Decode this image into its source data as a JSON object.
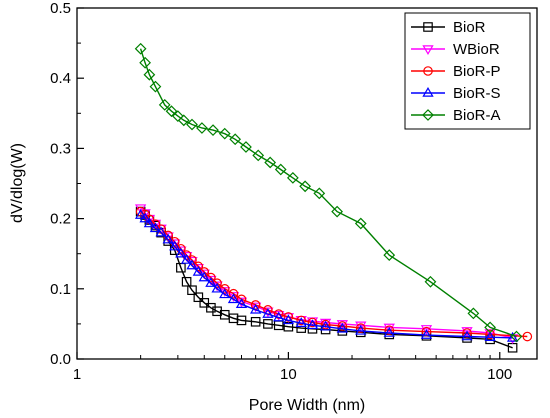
{
  "chart_data": {
    "type": "line",
    "xlabel": "Pore Width (nm)",
    "ylabel": "dV/dlog(W)",
    "xscale": "log",
    "xlim": [
      1,
      150
    ],
    "ylim": [
      0,
      0.5
    ],
    "xticks": [
      {
        "value": 1,
        "label": "1"
      },
      {
        "value": 10,
        "label": "10"
      },
      {
        "value": 100,
        "label": "100"
      }
    ],
    "yticks": [
      {
        "value": 0,
        "label": "0.0"
      },
      {
        "value": 0.1,
        "label": "0.1"
      },
      {
        "value": 0.2,
        "label": "0.2"
      },
      {
        "value": 0.3,
        "label": "0.3"
      },
      {
        "value": 0.4,
        "label": "0.4"
      },
      {
        "value": 0.5,
        "label": "0.5"
      }
    ],
    "grid": false,
    "legend_position": "top-right",
    "series": [
      {
        "name": "BioR",
        "color": "#000000",
        "marker": "square",
        "points": [
          [
            2.0,
            0.21
          ],
          [
            2.1,
            0.205
          ],
          [
            2.2,
            0.198
          ],
          [
            2.35,
            0.19
          ],
          [
            2.5,
            0.18
          ],
          [
            2.7,
            0.168
          ],
          [
            2.9,
            0.155
          ],
          [
            3.1,
            0.13
          ],
          [
            3.3,
            0.11
          ],
          [
            3.5,
            0.098
          ],
          [
            3.75,
            0.088
          ],
          [
            4.0,
            0.08
          ],
          [
            4.3,
            0.073
          ],
          [
            4.6,
            0.068
          ],
          [
            5.0,
            0.063
          ],
          [
            5.5,
            0.058
          ],
          [
            6.0,
            0.055
          ],
          [
            7.0,
            0.053
          ],
          [
            8.0,
            0.05
          ],
          [
            9.0,
            0.048
          ],
          [
            10.0,
            0.046
          ],
          [
            11.5,
            0.044
          ],
          [
            13,
            0.043
          ],
          [
            15,
            0.042
          ],
          [
            18,
            0.04
          ],
          [
            22,
            0.038
          ],
          [
            30,
            0.035
          ],
          [
            45,
            0.033
          ],
          [
            70,
            0.03
          ],
          [
            90,
            0.028
          ],
          [
            115,
            0.016
          ]
        ]
      },
      {
        "name": "WBioR",
        "color": "#ff00ff",
        "marker": "triangle-down",
        "points": [
          [
            2.0,
            0.215
          ],
          [
            2.1,
            0.208
          ],
          [
            2.2,
            0.2
          ],
          [
            2.35,
            0.193
          ],
          [
            2.5,
            0.186
          ],
          [
            2.7,
            0.175
          ],
          [
            2.9,
            0.165
          ],
          [
            3.1,
            0.155
          ],
          [
            3.3,
            0.147
          ],
          [
            3.5,
            0.14
          ],
          [
            3.75,
            0.13
          ],
          [
            4.0,
            0.122
          ],
          [
            4.3,
            0.113
          ],
          [
            4.6,
            0.105
          ],
          [
            5.0,
            0.097
          ],
          [
            5.5,
            0.09
          ],
          [
            6.0,
            0.082
          ],
          [
            7.0,
            0.075
          ],
          [
            8.0,
            0.068
          ],
          [
            9.0,
            0.063
          ],
          [
            10.0,
            0.06
          ],
          [
            11.5,
            0.056
          ],
          [
            13,
            0.054
          ],
          [
            15,
            0.052
          ],
          [
            18,
            0.05
          ],
          [
            22,
            0.048
          ],
          [
            30,
            0.045
          ],
          [
            45,
            0.043
          ],
          [
            70,
            0.04
          ],
          [
            90,
            0.037
          ],
          [
            115,
            0.03
          ]
        ]
      },
      {
        "name": "BioR-P",
        "color": "#ff0000",
        "marker": "circle",
        "points": [
          [
            2.0,
            0.21
          ],
          [
            2.1,
            0.206
          ],
          [
            2.2,
            0.199
          ],
          [
            2.35,
            0.192
          ],
          [
            2.5,
            0.185
          ],
          [
            2.7,
            0.176
          ],
          [
            2.9,
            0.167
          ],
          [
            3.1,
            0.157
          ],
          [
            3.3,
            0.148
          ],
          [
            3.5,
            0.141
          ],
          [
            3.75,
            0.132
          ],
          [
            4.0,
            0.124
          ],
          [
            4.3,
            0.116
          ],
          [
            4.6,
            0.108
          ],
          [
            5.0,
            0.1
          ],
          [
            5.5,
            0.093
          ],
          [
            6.0,
            0.085
          ],
          [
            7.0,
            0.077
          ],
          [
            8.0,
            0.07
          ],
          [
            9.0,
            0.064
          ],
          [
            10.0,
            0.06
          ],
          [
            11.5,
            0.055
          ],
          [
            13,
            0.052
          ],
          [
            15,
            0.049
          ],
          [
            18,
            0.047
          ],
          [
            22,
            0.044
          ],
          [
            30,
            0.041
          ],
          [
            45,
            0.039
          ],
          [
            70,
            0.037
          ],
          [
            90,
            0.035
          ],
          [
            135,
            0.032
          ]
        ]
      },
      {
        "name": "BioR-S",
        "color": "#0000ff",
        "marker": "triangle-up",
        "points": [
          [
            2.0,
            0.205
          ],
          [
            2.1,
            0.2
          ],
          [
            2.2,
            0.193
          ],
          [
            2.35,
            0.186
          ],
          [
            2.5,
            0.18
          ],
          [
            2.7,
            0.17
          ],
          [
            2.9,
            0.16
          ],
          [
            3.1,
            0.15
          ],
          [
            3.3,
            0.141
          ],
          [
            3.5,
            0.133
          ],
          [
            3.75,
            0.124
          ],
          [
            4.0,
            0.116
          ],
          [
            4.3,
            0.108
          ],
          [
            4.6,
            0.1
          ],
          [
            5.0,
            0.092
          ],
          [
            5.5,
            0.085
          ],
          [
            6.0,
            0.078
          ],
          [
            7.0,
            0.07
          ],
          [
            8.0,
            0.064
          ],
          [
            9.0,
            0.059
          ],
          [
            10.0,
            0.055
          ],
          [
            11.5,
            0.051
          ],
          [
            13,
            0.048
          ],
          [
            15,
            0.046
          ],
          [
            18,
            0.043
          ],
          [
            22,
            0.04
          ],
          [
            30,
            0.037
          ],
          [
            45,
            0.034
          ],
          [
            70,
            0.032
          ],
          [
            90,
            0.031
          ],
          [
            115,
            0.03
          ]
        ]
      },
      {
        "name": "BioR-A",
        "color": "#008000",
        "marker": "diamond",
        "points": [
          [
            2.0,
            0.442
          ],
          [
            2.1,
            0.422
          ],
          [
            2.2,
            0.405
          ],
          [
            2.35,
            0.388
          ],
          [
            2.6,
            0.362
          ],
          [
            2.8,
            0.353
          ],
          [
            3.0,
            0.346
          ],
          [
            3.2,
            0.34
          ],
          [
            3.5,
            0.334
          ],
          [
            3.9,
            0.329
          ],
          [
            4.4,
            0.326
          ],
          [
            5.0,
            0.321
          ],
          [
            5.6,
            0.313
          ],
          [
            6.3,
            0.302
          ],
          [
            7.2,
            0.29
          ],
          [
            8.2,
            0.28
          ],
          [
            9.2,
            0.27
          ],
          [
            10.5,
            0.258
          ],
          [
            12,
            0.246
          ],
          [
            14,
            0.236
          ],
          [
            17,
            0.21
          ],
          [
            22,
            0.193
          ],
          [
            30,
            0.148
          ],
          [
            47,
            0.11
          ],
          [
            75,
            0.065
          ],
          [
            90,
            0.045
          ],
          [
            120,
            0.032
          ]
        ]
      }
    ]
  }
}
